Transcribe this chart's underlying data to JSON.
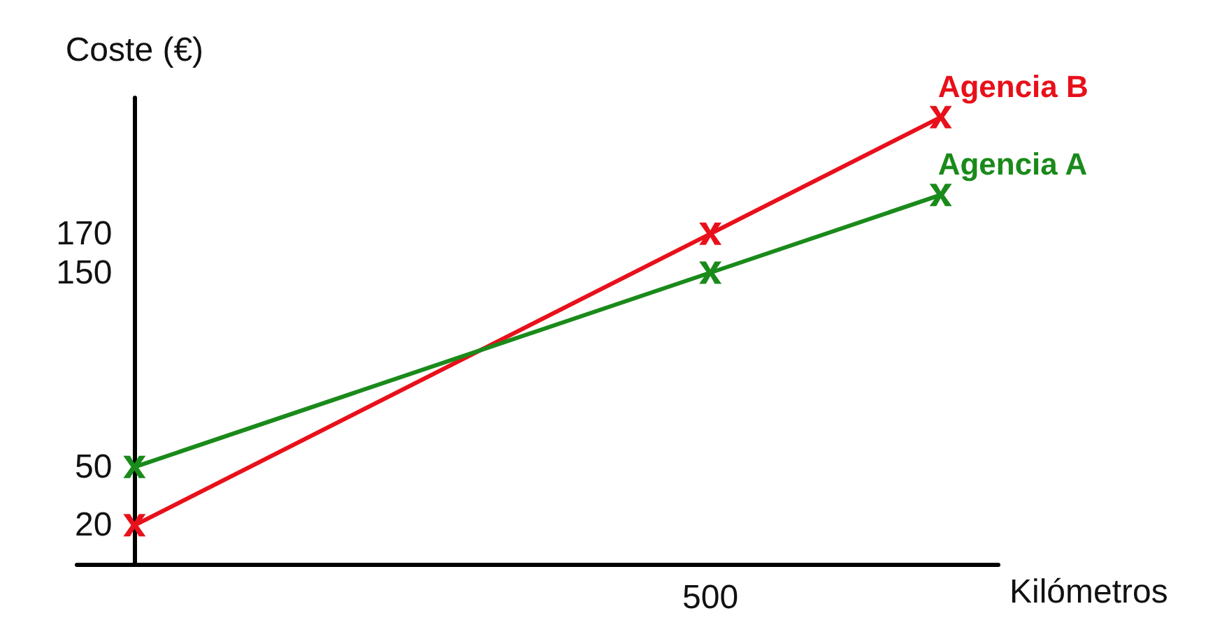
{
  "chart_data": {
    "type": "line",
    "xlabel": "Kilómetros",
    "ylabel": "Coste (€)",
    "categories": [
      null,
      null,
      null,
      null,
      null,
      "500",
      null,
      null
    ],
    "ylim": [
      0,
      240
    ],
    "yticks": [
      20,
      50,
      150,
      170
    ],
    "marker": "cross",
    "line_style": "solid",
    "series": [
      {
        "name": "Agencia B",
        "color": "#e8101a",
        "values": [
          20,
          null,
          null,
          null,
          null,
          170,
          null,
          230
        ]
      },
      {
        "name": "Agencia A",
        "color": "#1a8a1a",
        "values": [
          50,
          null,
          null,
          null,
          null,
          150,
          null,
          190
        ]
      }
    ]
  }
}
